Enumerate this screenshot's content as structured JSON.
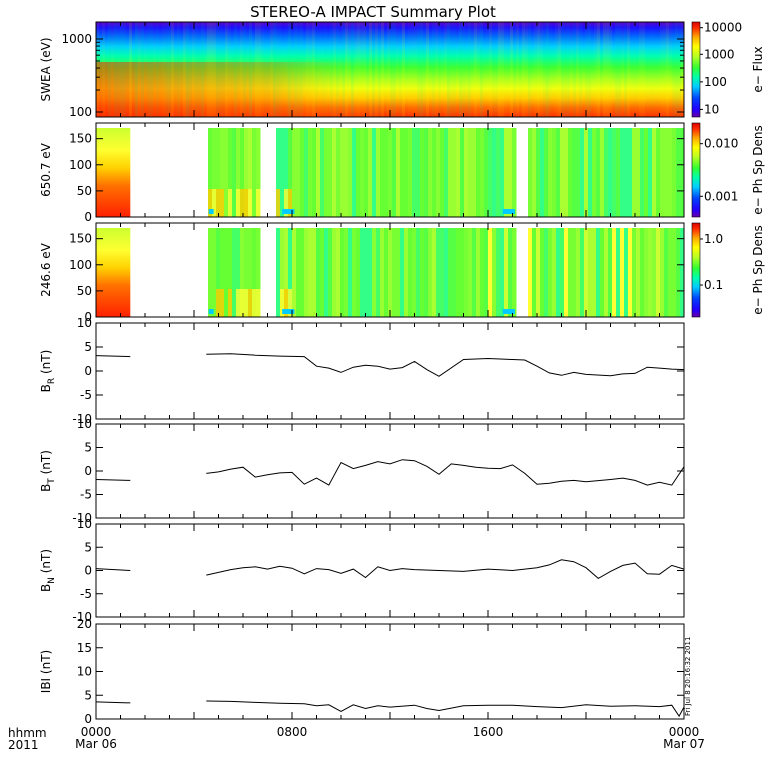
{
  "title": "STEREO-A IMPACT Summary Plot",
  "footer": {
    "left_top": "hhmm",
    "left_bottom": "2011",
    "stamp": "Fri Jul 8 20:16:32 2011"
  },
  "colors": {
    "spectro_stops": [
      "#b30000",
      "#ff3300",
      "#ff8c00",
      "#ffd700",
      "#ffff33",
      "#bfff33",
      "#66ff33",
      "#33ff66",
      "#00ffcc",
      "#00ccff",
      "#0066ff",
      "#0000ff",
      "#4400cc",
      "#6600aa"
    ],
    "line": "#000000"
  },
  "chart_data": [
    {
      "type": "heatmap",
      "name": "swea",
      "ylabel": "SWEA (eV)",
      "yscale": "log",
      "ylim": [
        100,
        2000
      ],
      "yticks": [
        "1000",
        "100"
      ],
      "colorbar": {
        "label": "e− Flux",
        "ticks": [
          "10000",
          "1000",
          "100",
          "10"
        ],
        "scale": "log"
      },
      "description_values": {
        "energy_low_flux_high": true
      }
    },
    {
      "type": "heatmap",
      "name": "pad650",
      "ylabel": "650.7 eV",
      "ylim": [
        0,
        180
      ],
      "yticks": [
        "150",
        "100",
        "50",
        "0"
      ],
      "data_gaps_hours": [
        [
          1.4,
          4.5
        ],
        [
          6.6,
          7.2
        ],
        [
          17.1,
          17.6
        ]
      ],
      "colorbar": {
        "label": "e− Ph Sp Dens",
        "ticks": [
          "0.010",
          "0.001"
        ],
        "scale": "log"
      }
    },
    {
      "type": "heatmap",
      "name": "pad246",
      "ylabel": "246.6 eV",
      "ylim": [
        0,
        180
      ],
      "yticks": [
        "150",
        "100",
        "50",
        "0"
      ],
      "data_gaps_hours": [
        [
          1.4,
          4.5
        ],
        [
          6.6,
          7.2
        ],
        [
          17.1,
          17.6
        ]
      ],
      "colorbar": {
        "label": "e− Ph Sp Dens",
        "ticks": [
          "1.0",
          "0.1"
        ],
        "scale": "log"
      }
    },
    {
      "type": "line",
      "name": "br",
      "ylabel": "B",
      "ylabel_sub": "R",
      "ylabel_unit": "(nT)",
      "ylim": [
        -10,
        10
      ],
      "yticks": [
        "10",
        "5",
        "0",
        "-5",
        "-10"
      ],
      "x": [
        0,
        1.4,
        4.5,
        5.5,
        6.5,
        7.5,
        8.5,
        9.0,
        9.5,
        10.0,
        10.5,
        11.0,
        11.5,
        12.0,
        12.5,
        13.0,
        13.5,
        14.0,
        15.0,
        16.0,
        17.0,
        17.5,
        18.0,
        18.5,
        19.0,
        19.5,
        20.0,
        21.0,
        21.5,
        22.0,
        22.5,
        23.0,
        23.5,
        24.0
      ],
      "values": [
        3.2,
        3.0,
        3.5,
        3.6,
        3.3,
        3.1,
        3.0,
        1.0,
        0.6,
        -0.3,
        0.8,
        1.2,
        1.0,
        0.4,
        0.7,
        2.0,
        0.3,
        -1.1,
        2.4,
        2.6,
        2.4,
        2.3,
        1.0,
        -0.4,
        -0.9,
        -0.3,
        -0.7,
        -1.0,
        -0.6,
        -0.5,
        0.8,
        0.6,
        0.4,
        0.3
      ],
      "gaps_after_x": [
        1.4
      ]
    },
    {
      "type": "line",
      "name": "bt",
      "ylabel": "B",
      "ylabel_sub": "T",
      "ylabel_unit": "(nT)",
      "ylim": [
        -10,
        10
      ],
      "yticks": [
        "10",
        "5",
        "0",
        "-5",
        "-10"
      ],
      "x": [
        0,
        1.4,
        4.5,
        5.0,
        5.5,
        6.0,
        6.5,
        7.0,
        7.5,
        8.0,
        8.5,
        9.0,
        9.5,
        10.0,
        10.5,
        11.0,
        11.5,
        12.0,
        12.5,
        13.0,
        13.5,
        14.0,
        14.5,
        15.0,
        15.5,
        16.0,
        16.5,
        17.0,
        17.5,
        18.0,
        18.5,
        19.0,
        19.5,
        20.0,
        21.0,
        21.5,
        22.0,
        22.5,
        23.0,
        23.5,
        24.0
      ],
      "values": [
        -1.8,
        -2.0,
        -0.5,
        -0.2,
        0.4,
        0.8,
        -1.3,
        -0.8,
        -0.4,
        -0.3,
        -2.8,
        -1.5,
        -3.0,
        1.8,
        0.5,
        1.2,
        2.0,
        1.5,
        2.4,
        2.2,
        1.0,
        -0.7,
        1.5,
        1.2,
        0.8,
        0.6,
        0.5,
        1.3,
        -0.5,
        -2.8,
        -2.6,
        -2.2,
        -2.0,
        -2.3,
        -1.8,
        -1.5,
        -2.0,
        -3.0,
        -2.4,
        -3.0,
        0.9
      ],
      "gaps_after_x": [
        1.4
      ]
    },
    {
      "type": "line",
      "name": "bn",
      "ylabel": "B",
      "ylabel_sub": "N",
      "ylabel_unit": "(nT)",
      "ylim": [
        -10,
        10
      ],
      "yticks": [
        "10",
        "5",
        "0",
        "-5",
        "-10"
      ],
      "x": [
        0,
        1.4,
        4.5,
        5.0,
        5.5,
        6.0,
        6.5,
        7.0,
        7.5,
        8.0,
        8.5,
        9.0,
        9.5,
        10.0,
        10.5,
        11.0,
        11.5,
        12.0,
        12.5,
        13.0,
        14.0,
        15.0,
        16.0,
        17.0,
        18.0,
        18.5,
        19.0,
        19.5,
        20.0,
        20.5,
        21.0,
        21.5,
        22.0,
        22.5,
        23.0,
        23.5,
        24.0
      ],
      "values": [
        0.4,
        0.0,
        -1.0,
        -0.4,
        0.2,
        0.6,
        0.8,
        0.3,
        0.9,
        0.5,
        -0.7,
        0.4,
        0.2,
        -0.6,
        0.3,
        -1.5,
        0.8,
        0.0,
        0.4,
        0.2,
        0.0,
        -0.2,
        0.3,
        0.0,
        0.6,
        1.2,
        2.3,
        1.9,
        0.6,
        -1.7,
        -0.2,
        1.1,
        1.6,
        -0.7,
        -0.8,
        1.1,
        0.3
      ],
      "gaps_after_x": [
        1.4
      ]
    },
    {
      "type": "line",
      "name": "bmag",
      "ylabel": "IBI",
      "ylabel_unit": "(nT)",
      "ylim": [
        0,
        20
      ],
      "yticks": [
        "20",
        "15",
        "10",
        "5",
        "0"
      ],
      "x": [
        0,
        1.4,
        4.5,
        5.5,
        6.5,
        7.5,
        8.5,
        9.0,
        9.5,
        10.0,
        10.5,
        11.0,
        11.5,
        12.0,
        13.0,
        13.5,
        14.0,
        15.0,
        16.0,
        17.0,
        18.0,
        19.0,
        20.0,
        21.0,
        22.0,
        23.0,
        23.5,
        23.8,
        24.0
      ],
      "values": [
        3.6,
        3.4,
        3.8,
        3.7,
        3.5,
        3.3,
        3.2,
        2.8,
        3.0,
        1.6,
        3.0,
        2.2,
        2.8,
        2.5,
        2.9,
        2.2,
        1.8,
        2.8,
        2.9,
        2.9,
        2.6,
        2.4,
        3.0,
        2.7,
        2.8,
        2.6,
        2.9,
        0.6,
        2.5
      ],
      "gaps_after_x": [
        1.4
      ]
    }
  ],
  "xaxis": {
    "xlim": [
      0,
      24
    ],
    "major_ticks": [
      {
        "hour": 0,
        "time": "0000",
        "date": "Mar 06"
      },
      {
        "hour": 8,
        "time": "0800",
        "date": ""
      },
      {
        "hour": 16,
        "time": "1600",
        "date": ""
      },
      {
        "hour": 24,
        "time": "0000",
        "date": "Mar 07"
      }
    ]
  }
}
